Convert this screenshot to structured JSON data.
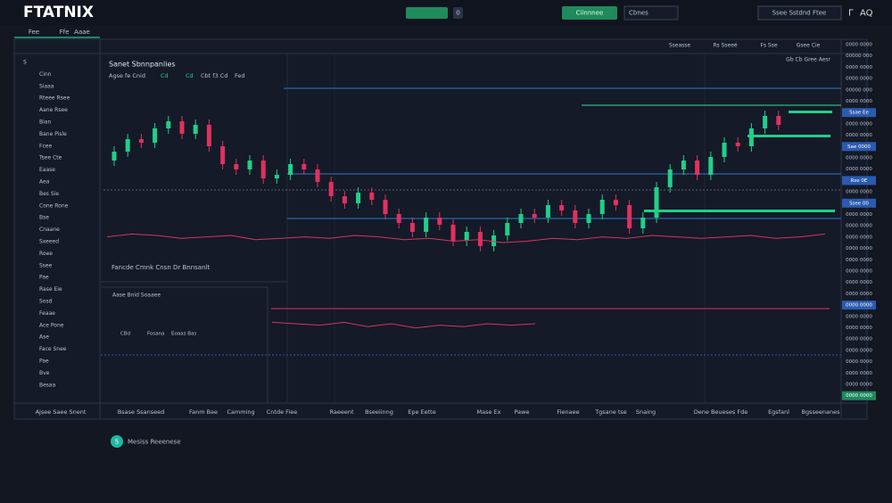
{
  "header": {
    "logo": "FTATNIX",
    "button_2": "Ciinnnee",
    "badge": "0",
    "search": "Cbnes",
    "account": "Ssee  Sstdnd Ftee",
    "icon_1": "Γ",
    "icon_2": "AQ"
  },
  "tabs": [
    "Fee",
    "Ffe",
    "Aaae"
  ],
  "panel_header": [
    "Sseasse",
    "Rs Sseeé",
    "Fs Sse",
    "Gsee Cie"
  ],
  "sidebar": [
    "S",
    "Cinn",
    "Siaaa",
    "Rteee Rsee",
    "Aane Rsee",
    "Bian",
    "Bane Pisle",
    "Fcee",
    "Tsee Cte",
    "Eaase",
    "Aea",
    "Bes Sie",
    "Cone Rone",
    "Bse",
    "Cnaane",
    "Sxeeed",
    "Roee",
    "Ssee",
    "Pae",
    "Rase Eie",
    "Sosd",
    "Feaae",
    "Ace Pone",
    "Ase",
    "Face Snee",
    "Pae",
    "Bve",
    "Besaa"
  ],
  "chart_data": {
    "type": "candlestick",
    "title": "Sanet Sbnnpanlies",
    "subtitle": [
      "Agse fe Cnid",
      "Cd",
      "Cd",
      "Cbt f3 Cd",
      "Fed"
    ],
    "legend": "Gb Cb Gree Aesr",
    "ylim": [
      0,
      100
    ],
    "candles": [
      [
        60,
        68,
        57,
        65
      ],
      [
        65,
        75,
        62,
        72
      ],
      [
        72,
        75,
        67,
        70
      ],
      [
        70,
        81,
        67,
        78
      ],
      [
        78,
        85,
        75,
        82
      ],
      [
        82,
        85,
        72,
        75
      ],
      [
        75,
        83,
        72,
        80
      ],
      [
        80,
        83,
        65,
        68
      ],
      [
        68,
        71,
        55,
        58
      ],
      [
        58,
        61,
        52,
        55
      ],
      [
        55,
        63,
        52,
        60
      ],
      [
        60,
        63,
        47,
        50
      ],
      [
        50,
        55,
        47,
        52
      ],
      [
        52,
        61,
        49,
        58
      ],
      [
        58,
        61,
        52,
        55
      ],
      [
        55,
        58,
        45,
        48
      ],
      [
        48,
        51,
        37,
        40
      ],
      [
        40,
        43,
        33,
        36
      ],
      [
        36,
        45,
        33,
        42
      ],
      [
        42,
        45,
        35,
        38
      ],
      [
        38,
        41,
        27,
        30
      ],
      [
        30,
        33,
        22,
        25
      ],
      [
        25,
        28,
        17,
        20
      ],
      [
        20,
        31,
        17,
        28
      ],
      [
        28,
        31,
        21,
        24
      ],
      [
        24,
        27,
        12,
        15
      ],
      [
        15,
        23,
        12,
        20
      ],
      [
        20,
        23,
        9,
        12
      ],
      [
        12,
        21,
        9,
        18
      ],
      [
        18,
        28,
        15,
        25
      ],
      [
        25,
        33,
        22,
        30
      ],
      [
        30,
        33,
        25,
        28
      ],
      [
        28,
        38,
        25,
        35
      ],
      [
        35,
        38,
        29,
        32
      ],
      [
        32,
        35,
        22,
        25
      ],
      [
        25,
        33,
        22,
        30
      ],
      [
        30,
        41,
        27,
        38
      ],
      [
        38,
        41,
        32,
        35
      ],
      [
        35,
        38,
        19,
        22
      ],
      [
        22,
        31,
        19,
        28
      ],
      [
        28,
        48,
        25,
        45
      ],
      [
        45,
        58,
        42,
        55
      ],
      [
        55,
        63,
        52,
        60
      ],
      [
        60,
        63,
        49,
        52
      ],
      [
        52,
        65,
        49,
        62
      ],
      [
        62,
        73,
        59,
        70
      ],
      [
        70,
        73,
        65,
        68
      ],
      [
        68,
        81,
        65,
        78
      ],
      [
        78,
        88,
        75,
        85
      ],
      [
        85,
        88,
        77,
        80
      ]
    ],
    "indicator_1": [
      4,
      6,
      5,
      3,
      4,
      5,
      2,
      3,
      4,
      3,
      5,
      4,
      2,
      3,
      1,
      2,
      0,
      1,
      3,
      2,
      4,
      3,
      5,
      4,
      3,
      4,
      5,
      3,
      4,
      6
    ],
    "indicator_2": [
      6,
      5,
      4,
      6,
      3,
      5,
      2,
      4,
      3,
      5,
      4,
      5
    ],
    "indicator_label": "Fancde Cmnk Cnsn Dr Bnnsanlt",
    "panel_label": "Aase Bnid Soaaee",
    "panel_row": [
      "CBd",
      "Fosana",
      "Eoaas Bas"
    ],
    "price_labels": [
      "0000 0000",
      "00000 000",
      "0000 0000",
      "0000 0000",
      "00000 000",
      "0000 0000",
      "Ssae Ee",
      "0000 0000",
      "0000 0000",
      "Sae 0000",
      "0000 0000",
      "0000 0000",
      "Rse 0E",
      "0000 0000",
      "Ssee 00",
      "0000 0000",
      "0000 0000",
      "0000 0000",
      "0000 0000",
      "0000 0000",
      "0000 0000",
      "0000 0000",
      "0000 0000",
      "0000 0000",
      "0000 0000",
      "0000 0000",
      "0000 0000",
      "0000 0000",
      "0000 0000",
      "0000 0000",
      "0000 0000",
      "0000 0000"
    ]
  },
  "bottom_bar": [
    "Ajsee Saee Snent",
    "Bsase Ssanseed",
    "Fanm Bae",
    "Camming",
    "Cntde Fiee",
    "Raeeent",
    "Bseeiinng",
    "Epe Eette",
    "Mase Ex",
    "Pawe",
    "Fienaee",
    "Tgsane tse",
    "Snaing",
    "Dene Beueses Fde",
    "Egsfanl",
    "Bgsseenanes"
  ],
  "footer": {
    "badge": "5",
    "text": "Mesiss Reeenese"
  }
}
